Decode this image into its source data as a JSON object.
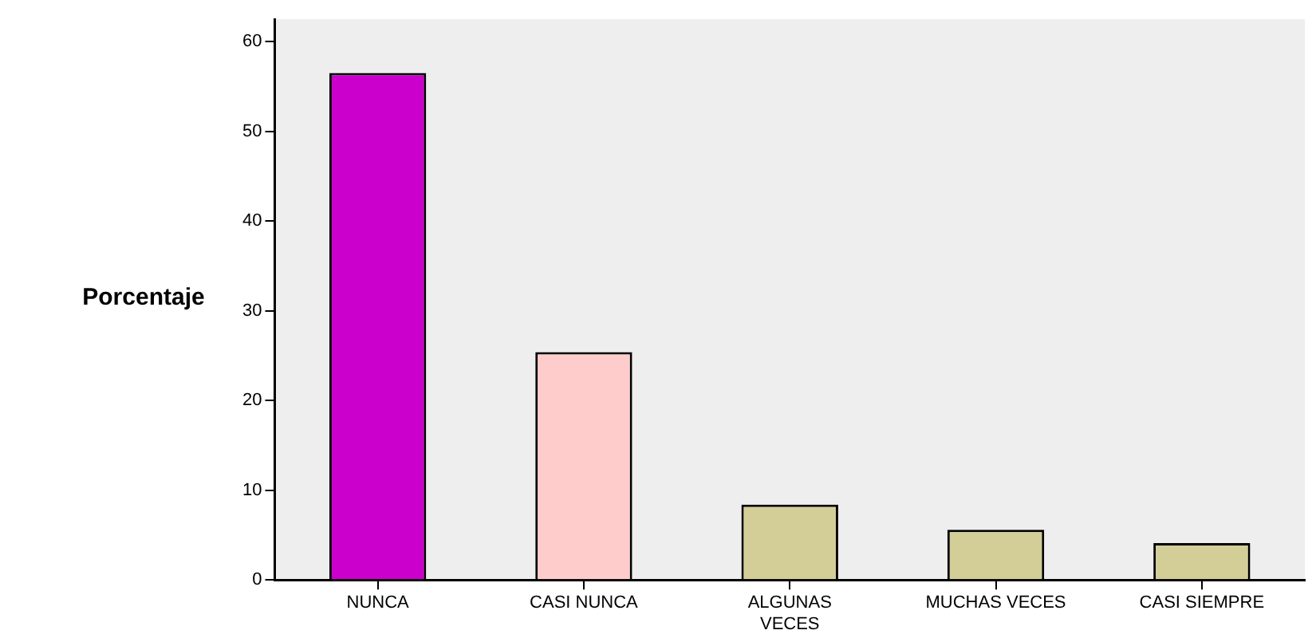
{
  "chart_data": {
    "type": "bar",
    "ylabel": "Porcentaje",
    "categories": [
      "NUNCA",
      "CASI NUNCA",
      "ALGUNAS VECES",
      "MUCHAS VECES",
      "CASI SIEMPRE"
    ],
    "values": [
      56.5,
      25.4,
      8.4,
      5.6,
      4.1
    ],
    "colors": [
      "#cc00cc",
      "#ffcccc",
      "#d3ce97",
      "#d3ce97",
      "#d3ce97"
    ],
    "ylim": [
      0,
      62.5
    ],
    "yticks": [
      0,
      10,
      20,
      30,
      40,
      50,
      60
    ],
    "grid": false,
    "legend": false
  }
}
